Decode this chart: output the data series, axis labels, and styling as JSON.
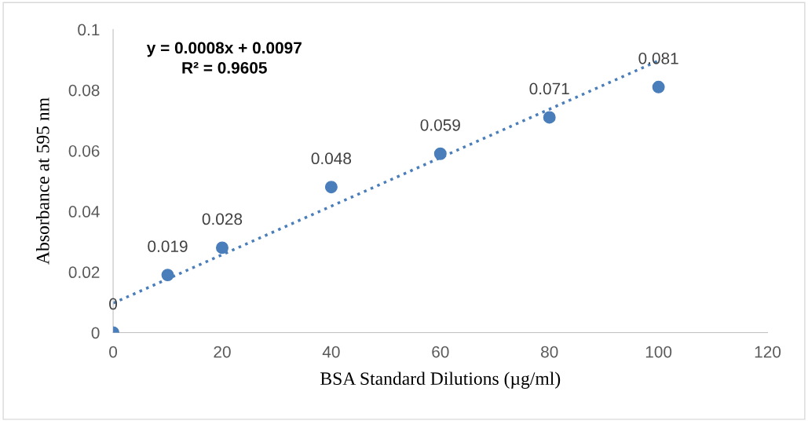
{
  "chart_data": {
    "type": "scatter",
    "xlabel": "BSA Standard Dilutions (µg/ml)",
    "ylabel": "Absorbance at 595 nm",
    "series": [
      {
        "color": "#4a7ebb",
        "marker": "circle",
        "x": [
          0,
          10,
          20,
          40,
          60,
          80,
          100
        ],
        "values": [
          0,
          0.019,
          0.028,
          0.048,
          0.059,
          0.071,
          0.081
        ],
        "value_labels": [
          "0",
          "0.019",
          "0.028",
          "0.048",
          "0.059",
          "0.071",
          "0.081"
        ]
      },
      {
        "type": "line",
        "color": "#4a7ebb",
        "marker": "none",
        "line_style": "dotted",
        "x": [
          0,
          100
        ],
        "values": [
          0.0097,
          0.0897
        ]
      }
    ],
    "annotations": [
      "y = 0.0008x + 0.0097\nR² = 0.9605"
    ],
    "xlim": [
      0,
      120
    ],
    "xticks": [
      0,
      20,
      40,
      60,
      80,
      100,
      120
    ],
    "ylim": [
      0,
      0.1
    ],
    "yticks": [
      0,
      0.02,
      0.04,
      0.06,
      0.08,
      0.1
    ],
    "grid": false,
    "legend": false
  }
}
